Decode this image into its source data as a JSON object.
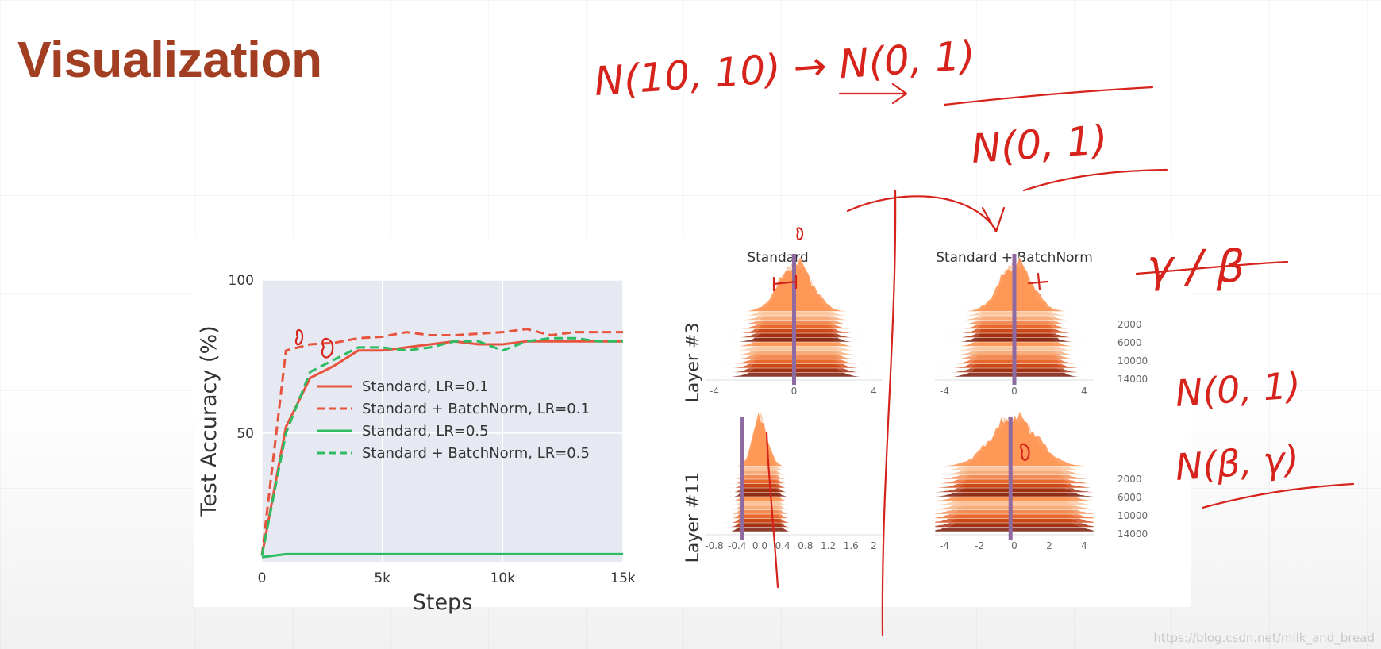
{
  "slide": {
    "title": "Visualization",
    "watermark": "https://blog.csdn.net/milk_and_bread"
  },
  "colors": {
    "title": "#a23f22",
    "red": "#e8533e",
    "green": "#2dbb63",
    "plot_bg": "#e6e9f1",
    "ink": "#d6231b",
    "marker": "#8e6aa0"
  },
  "chart_data": [
    {
      "type": "line",
      "xlabel": "Steps",
      "ylabel": "Test Accuracy (%)",
      "xlim": [
        0,
        15000
      ],
      "ylim": [
        8,
        100
      ],
      "xticks": [
        0,
        5000,
        10000,
        15000
      ],
      "xtick_labels": [
        "0",
        "5k",
        "10k",
        "15k"
      ],
      "yticks": [
        50,
        100
      ],
      "ytick_labels": [
        "50",
        "100"
      ],
      "grid": true,
      "legend_position": "center-left",
      "series": [
        {
          "name": "Standard, LR=0.1",
          "color": "#e8533e",
          "dash": false,
          "x": [
            0,
            1000,
            2000,
            3000,
            4000,
            5000,
            6000,
            7000,
            8000,
            9000,
            10000,
            11000,
            12000,
            13000,
            14000,
            15000
          ],
          "y": [
            10,
            52,
            68,
            72,
            77,
            77,
            78,
            79,
            80,
            79,
            79,
            80,
            80,
            80,
            80,
            80
          ]
        },
        {
          "name": "Standard + BatchNorm, LR=0.1",
          "color": "#e8533e",
          "dash": true,
          "x": [
            0,
            1000,
            2000,
            3000,
            4000,
            5000,
            6000,
            7000,
            8000,
            9000,
            10000,
            11000,
            12000,
            13000,
            14000,
            15000
          ],
          "y": [
            10,
            77,
            79,
            79.5,
            81,
            81.5,
            83,
            82,
            82,
            82.5,
            83,
            84,
            82,
            83,
            83,
            83
          ]
        },
        {
          "name": "Standard, LR=0.5",
          "color": "#2dbb63",
          "dash": false,
          "x": [
            0,
            1000,
            2000,
            4000,
            6000,
            8000,
            10000,
            12000,
            15000
          ],
          "y": [
            9.5,
            10.5,
            10.5,
            10.5,
            10.5,
            10.5,
            10.5,
            10.5,
            10.5
          ]
        },
        {
          "name": "Standard + BatchNorm, LR=0.5",
          "color": "#2dbb63",
          "dash": true,
          "x": [
            0,
            1000,
            2000,
            3000,
            4000,
            5000,
            6000,
            7000,
            8000,
            9000,
            10000,
            11000,
            12000,
            13000,
            14000,
            15000
          ],
          "y": [
            10,
            50,
            70,
            74,
            78,
            78,
            77,
            78,
            80,
            80,
            77,
            80,
            81,
            81,
            80,
            80
          ]
        }
      ]
    },
    {
      "type": "area",
      "column_titles": [
        "Standard",
        "Standard + BatchNorm"
      ],
      "row_labels": [
        "Layer #3",
        "Layer #11"
      ],
      "panels": [
        {
          "column": "Standard",
          "row": "Layer #3",
          "xlim": [
            -5,
            5
          ],
          "xtick_labels": [
            "-4",
            "0",
            "4"
          ],
          "peak": 0.1,
          "spread": 0.9,
          "mean_marker": 0
        },
        {
          "column": "Standard + BatchNorm",
          "row": "Layer #3",
          "xlim": [
            -5,
            5
          ],
          "xtick_labels": [
            "-4",
            "0",
            "4"
          ],
          "ytick_labels": [
            "2000",
            "6000",
            "10000",
            "14000"
          ],
          "peak": 0.1,
          "spread": 1.0,
          "mean_marker": 0
        },
        {
          "column": "Standard",
          "row": "Layer #11",
          "xlim": [
            -0.9,
            2.0
          ],
          "xtick_labels": [
            "-0.8",
            "-0.4",
            "0.0",
            "0.4",
            "0.8",
            "1.2",
            "1.6",
            "2"
          ],
          "peak": 0.0,
          "spread": 0.12,
          "mean_marker": -0.3
        },
        {
          "column": "Standard + BatchNorm",
          "row": "Layer #11",
          "xlim": [
            -4.2,
            4.2
          ],
          "xtick_labels": [
            "-4",
            "-2",
            "0",
            "2",
            "4"
          ],
          "ytick_labels": [
            "2000",
            "6000",
            "10000",
            "14000"
          ],
          "peak": 0.0,
          "spread": 1.2,
          "mean_marker": -0.2
        }
      ]
    }
  ],
  "annotations": [
    "N(10, 10) → N(0, 1)",
    "N(0, 1)",
    "γ / β",
    "N(0, 1)",
    "N(β, γ)"
  ]
}
